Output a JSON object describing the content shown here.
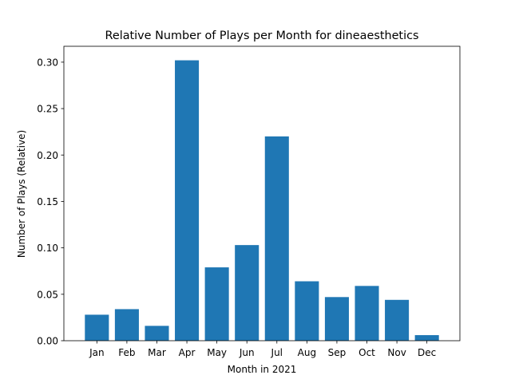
{
  "chart_data": {
    "type": "bar",
    "title": "Relative Number of Plays per Month for dineaesthetics",
    "xlabel": "Month in 2021",
    "ylabel": "Number of Plays (Relative)",
    "categories": [
      "Jan",
      "Feb",
      "Mar",
      "Apr",
      "May",
      "Jun",
      "Jul",
      "Aug",
      "Sep",
      "Oct",
      "Nov",
      "Dec"
    ],
    "values": [
      0.028,
      0.034,
      0.016,
      0.302,
      0.079,
      0.103,
      0.22,
      0.064,
      0.047,
      0.059,
      0.044,
      0.006
    ],
    "ylim": [
      0,
      0.3171
    ],
    "yticks": [
      0.0,
      0.05,
      0.1,
      0.15,
      0.2,
      0.25,
      0.3
    ],
    "ytick_labels": [
      "0.00",
      "0.05",
      "0.10",
      "0.15",
      "0.20",
      "0.25",
      "0.30"
    ],
    "bar_color": "#1f77b4",
    "grid": false,
    "legend": "none"
  }
}
